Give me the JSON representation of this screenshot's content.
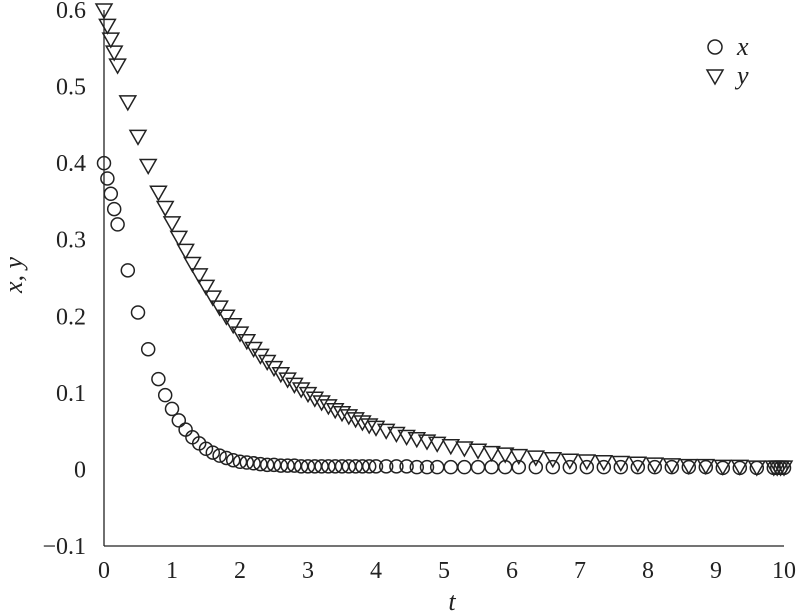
{
  "chart_data": {
    "type": "scatter",
    "xlabel": "t",
    "ylabel": "x, y",
    "xlim": [
      0,
      10
    ],
    "ylim": [
      -0.1,
      0.6
    ],
    "xticks": [
      "0",
      "1",
      "2",
      "3",
      "4",
      "5",
      "6",
      "7",
      "8",
      "9",
      "10"
    ],
    "yticks": [
      "−0.1",
      "0",
      "0.1",
      "0.2",
      "0.3",
      "0.4",
      "0.5",
      "0.6"
    ],
    "ytick_values": [
      -0.1,
      0,
      0.1,
      0.2,
      0.3,
      0.4,
      0.5,
      0.6
    ],
    "legend": "top-right",
    "grid": false,
    "series": [
      {
        "name": "x",
        "marker": "circle",
        "x": [
          0,
          0.05,
          0.1,
          0.15,
          0.2,
          0.35,
          0.5,
          0.65,
          0.8,
          0.9,
          1.0,
          1.1,
          1.2,
          1.3,
          1.4,
          1.5,
          1.6,
          1.7,
          1.8,
          1.9,
          2.0,
          2.1,
          2.2,
          2.3,
          2.4,
          2.5,
          2.6,
          2.7,
          2.8,
          2.9,
          3.0,
          3.1,
          3.2,
          3.3,
          3.4,
          3.5,
          3.6,
          3.7,
          3.8,
          3.9,
          4.0,
          4.15,
          4.3,
          4.45,
          4.6,
          4.75,
          4.9,
          5.1,
          5.3,
          5.5,
          5.7,
          5.9,
          6.1,
          6.35,
          6.6,
          6.85,
          7.1,
          7.35,
          7.6,
          7.85,
          8.1,
          8.35,
          8.6,
          8.85,
          9.1,
          9.35,
          9.6,
          9.85,
          9.9,
          9.95,
          10.0
        ],
        "values": [
          0.4,
          0.38,
          0.36,
          0.34,
          0.32,
          0.26,
          0.205,
          0.157,
          0.118,
          0.097,
          0.079,
          0.064,
          0.052,
          0.042,
          0.034,
          0.027,
          0.022,
          0.018,
          0.015,
          0.012,
          0.01,
          0.009,
          0.008,
          0.007,
          0.006,
          0.006,
          0.005,
          0.005,
          0.005,
          0.004,
          0.004,
          0.004,
          0.004,
          0.004,
          0.004,
          0.004,
          0.004,
          0.004,
          0.004,
          0.004,
          0.004,
          0.004,
          0.004,
          0.004,
          0.003,
          0.003,
          0.003,
          0.003,
          0.003,
          0.003,
          0.003,
          0.003,
          0.003,
          0.003,
          0.003,
          0.003,
          0.003,
          0.003,
          0.003,
          0.003,
          0.003,
          0.003,
          0.003,
          0.003,
          0.002,
          0.002,
          0.002,
          0.002,
          0.002,
          0.002,
          0.002
        ]
      },
      {
        "name": "y",
        "marker": "triangle-down",
        "x": [
          0,
          0.05,
          0.1,
          0.15,
          0.2,
          0.35,
          0.5,
          0.65,
          0.8,
          0.9,
          1.0,
          1.1,
          1.2,
          1.3,
          1.4,
          1.5,
          1.6,
          1.7,
          1.8,
          1.9,
          2.0,
          2.1,
          2.2,
          2.3,
          2.4,
          2.5,
          2.6,
          2.7,
          2.8,
          2.9,
          3.0,
          3.1,
          3.2,
          3.3,
          3.4,
          3.5,
          3.6,
          3.7,
          3.8,
          3.9,
          4.0,
          4.15,
          4.3,
          4.45,
          4.6,
          4.75,
          4.9,
          5.1,
          5.3,
          5.5,
          5.7,
          5.9,
          6.1,
          6.35,
          6.6,
          6.85,
          7.1,
          7.35,
          7.6,
          7.85,
          8.1,
          8.35,
          8.6,
          8.85,
          9.1,
          9.35,
          9.6,
          9.85,
          9.9,
          9.95,
          10.0
        ],
        "values": [
          0.6,
          0.58,
          0.562,
          0.545,
          0.528,
          0.48,
          0.435,
          0.397,
          0.362,
          0.342,
          0.322,
          0.303,
          0.286,
          0.269,
          0.254,
          0.239,
          0.225,
          0.212,
          0.2,
          0.189,
          0.178,
          0.168,
          0.158,
          0.149,
          0.141,
          0.133,
          0.125,
          0.118,
          0.111,
          0.105,
          0.099,
          0.093,
          0.088,
          0.083,
          0.078,
          0.074,
          0.07,
          0.066,
          0.062,
          0.058,
          0.055,
          0.051,
          0.047,
          0.043,
          0.04,
          0.037,
          0.034,
          0.031,
          0.028,
          0.025,
          0.022,
          0.02,
          0.018,
          0.016,
          0.014,
          0.012,
          0.011,
          0.01,
          0.009,
          0.008,
          0.007,
          0.006,
          0.005,
          0.005,
          0.004,
          0.004,
          0.003,
          0.003,
          0.003,
          0.003,
          0.003
        ]
      }
    ]
  }
}
